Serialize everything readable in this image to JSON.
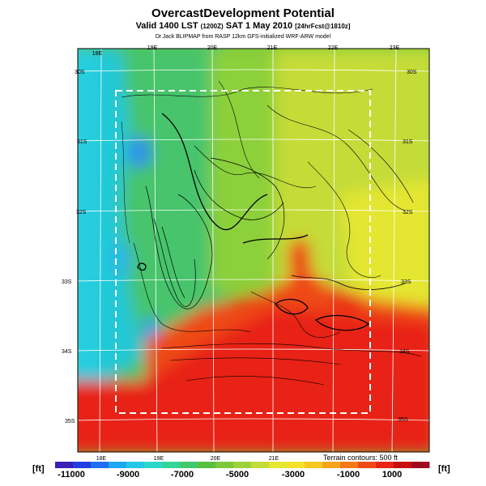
{
  "title": "OvercastDevelopment Potential",
  "subtitle": {
    "main_prefix": "Valid 1400 LST",
    "time_code": "(1200Z)",
    "main_suffix": "SAT 1 May 2010",
    "forecast": "[24hrFcst@1810z]"
  },
  "source_line": "Dr.Jack BLIPMAP from RASP 12km GFS-initialized WRF-ARW model",
  "map": {
    "lon_labels_top": [
      "18E",
      "19E",
      "20E",
      "21E",
      "22E",
      "23E"
    ],
    "lon_labels_bottom": [
      "18E",
      "19E",
      "20E",
      "21E"
    ],
    "lat_labels_right": [
      "30S",
      "31S",
      "32S",
      "33S",
      "34S",
      "35S"
    ],
    "lat_labels_left": [
      "30S",
      "31S",
      "32S",
      "33S",
      "34S",
      "35S"
    ],
    "terrain_note": "Terrain contours: 500 ft"
  },
  "colorbar": {
    "unit_left": "[ft]",
    "unit_right": "[ft]",
    "tick_labels": [
      "-11000",
      "-9000",
      "-7000",
      "-5000",
      "-3000",
      "-1000",
      "1000"
    ],
    "colors": [
      "#3a1fb5",
      "#1f3fe0",
      "#1e6ff0",
      "#1ea7f2",
      "#22c8e6",
      "#2cd8c8",
      "#34d49a",
      "#40c86a",
      "#58c040",
      "#7cc83a",
      "#9ed23a",
      "#c4dc38",
      "#e4e630",
      "#f4e228",
      "#f8c820",
      "#f8a41c",
      "#f47818",
      "#ee4a16",
      "#e82414",
      "#c81010",
      "#a00a20"
    ]
  }
}
